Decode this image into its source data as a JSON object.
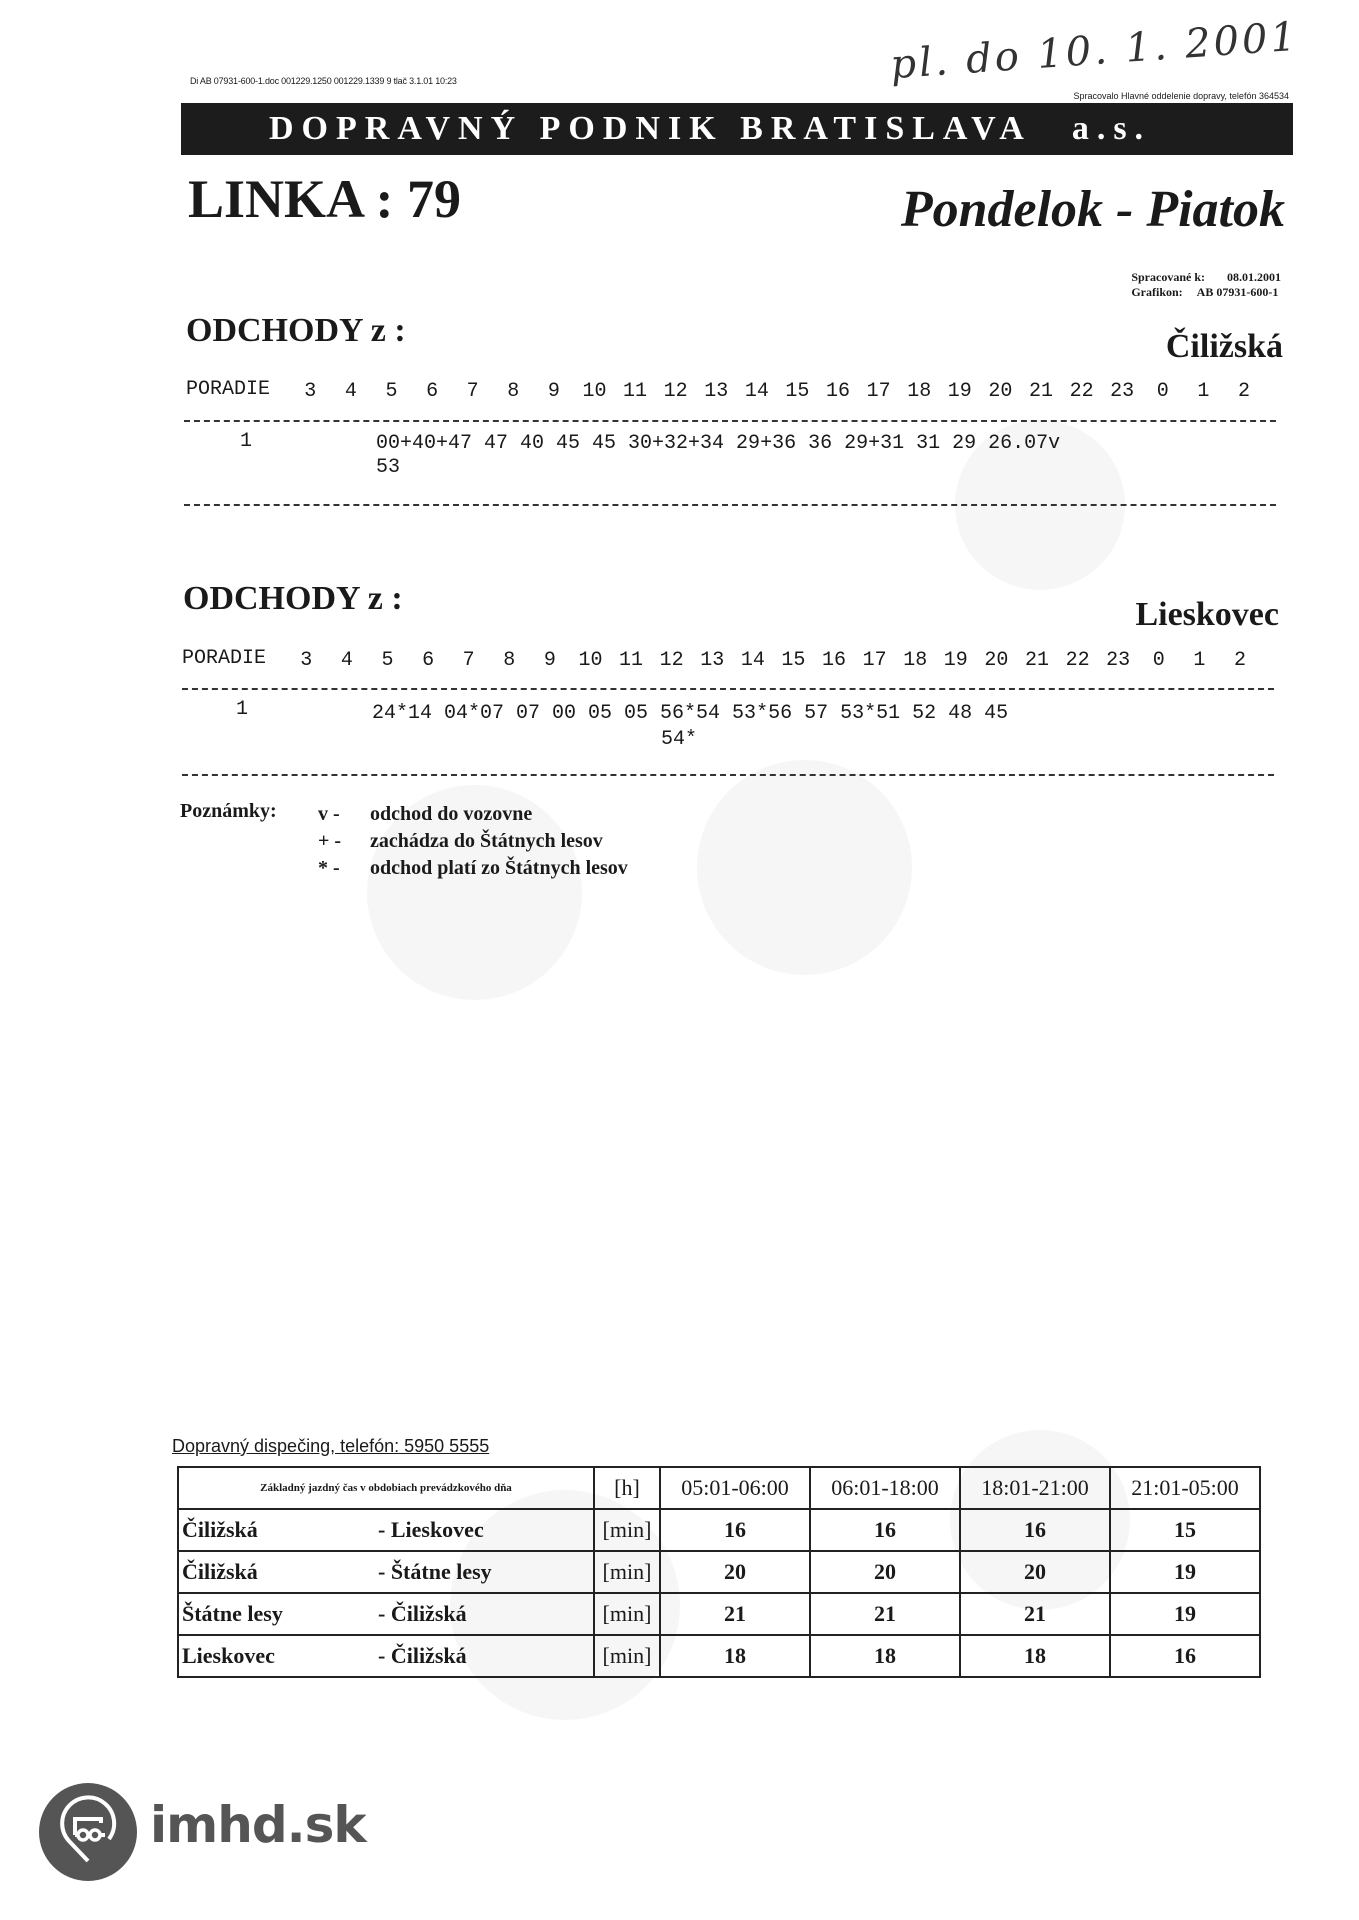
{
  "handwritten_note": "pl. do 10. 1. 2001",
  "doc_line": "Di AB 07931-600-1.doc 001229.1250 001229.1339 9 tlač 3.1.01 10:23",
  "processed_by": "Spracovalo Hlavné oddelenie dopravy, telefón 364534",
  "company": {
    "name": "DOPRAVNÝ PODNIK BRATISLAVA",
    "suffix": "a.s."
  },
  "line_title": "LINKA : 79",
  "days": "Pondelok - Piatok",
  "meta": {
    "processed_label": "Spracované k:",
    "processed_value": "08.01.2001",
    "grafikon_label": "Grafikon:",
    "grafikon_value": "AB 07931-600-1"
  },
  "sections": [
    {
      "heading": "ODCHODY z :",
      "stop": "Čiližská",
      "order_label": "PORADIE",
      "hours": [
        "3",
        "4",
        "5",
        "6",
        "7",
        "8",
        "9",
        "10",
        "11",
        "12",
        "13",
        "14",
        "15",
        "16",
        "17",
        "18",
        "19",
        "20",
        "21",
        "22",
        "23",
        "0",
        "1",
        "2"
      ],
      "row_order": "1",
      "row_line1": "00+40+47 47 40 45 45 30+32+34 29+36 36 29+31 31 29 26.07v",
      "row_line2": "53"
    },
    {
      "heading": "ODCHODY z :",
      "stop": "Lieskovec",
      "order_label": "PORADIE",
      "hours": [
        "3",
        "4",
        "5",
        "6",
        "7",
        "8",
        "9",
        "10",
        "11",
        "12",
        "13",
        "14",
        "15",
        "16",
        "17",
        "18",
        "19",
        "20",
        "21",
        "22",
        "23",
        "0",
        "1",
        "2"
      ],
      "row_order": "1",
      "row_line1": "24*14 04*07 07 00 05 05 56*54 53*56 57 53*51 52 48 45",
      "row_line2": "54*"
    }
  ],
  "notes": {
    "label": "Poznámky:",
    "items": [
      {
        "symbol": "v -",
        "text": "odchod do vozovne"
      },
      {
        "symbol": "+ -",
        "text": "zachádza do Štátnych lesov"
      },
      {
        "symbol": "* -",
        "text": "odchod platí zo Štátnych lesov"
      }
    ]
  },
  "dispatch": "Dopravný dispečing, telefón:  5950 5555",
  "travel_table": {
    "header": [
      "Základný jazdný čas v obdobiach prevádzkového dňa",
      "[h]",
      "05:01-06:00",
      "06:01-18:00",
      "18:01-21:00",
      "21:01-05:00"
    ],
    "rows": [
      {
        "from": "Čiližská",
        "to": "- Lieskovec",
        "unit": "[min]",
        "values": [
          "16",
          "16",
          "16",
          "15"
        ]
      },
      {
        "from": "Čiližská",
        "to": "- Štátne lesy",
        "unit": "[min]",
        "values": [
          "20",
          "20",
          "20",
          "19"
        ]
      },
      {
        "from": "Štátne lesy",
        "to": "- Čiližská",
        "unit": "[min]",
        "values": [
          "21",
          "21",
          "21",
          "19"
        ]
      },
      {
        "from": "Lieskovec",
        "to": "- Čiližská",
        "unit": "[min]",
        "values": [
          "18",
          "18",
          "18",
          "16"
        ]
      }
    ]
  },
  "watermark": {
    "text": "imhd.sk",
    "icon": "bus-pin-icon",
    "color": "#555555"
  }
}
